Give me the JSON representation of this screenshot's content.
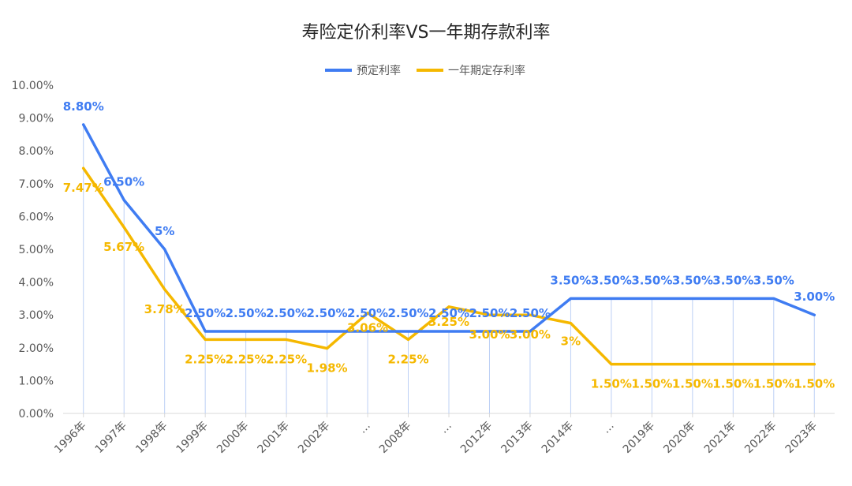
{
  "chart_data": {
    "type": "line",
    "title": "寿险定价利率VS一年期存款利率",
    "categories": [
      "1996年",
      "1997年",
      "1998年",
      "1999年",
      "2000年",
      "2001年",
      "2002年",
      "…",
      "2008年",
      "…",
      "2012年",
      "2013年",
      "2014年",
      "…",
      "2019年",
      "2020年",
      "2021年",
      "2022年",
      "2023年"
    ],
    "ylim": [
      0,
      10
    ],
    "yticks": [
      "0.00%",
      "1.00%",
      "2.00%",
      "3.00%",
      "4.00%",
      "5.00%",
      "6.00%",
      "7.00%",
      "8.00%",
      "9.00%",
      "10.00%"
    ],
    "grid": false,
    "legend_position": "top",
    "series": [
      {
        "name": "预定利率",
        "color": "#3f7cf2",
        "values": [
          8.8,
          6.5,
          5.0,
          2.5,
          2.5,
          2.5,
          2.5,
          2.5,
          2.5,
          2.5,
          2.5,
          2.5,
          3.5,
          3.5,
          3.5,
          3.5,
          3.5,
          3.5,
          3.0
        ],
        "labels": [
          "8.80%",
          "6.50%",
          "5%",
          "2.50%",
          "2.50%",
          "2.50%",
          "2.50%",
          "2.50%",
          "2.50%",
          "2.50%",
          "2.50%",
          "2.50%",
          "3.50%",
          "3.50%",
          "3.50%",
          "3.50%",
          "3.50%",
          "3.50%",
          "3.00%"
        ]
      },
      {
        "name": "一年期定存利率",
        "color": "#f5b800",
        "values": [
          7.47,
          5.67,
          3.78,
          2.25,
          2.25,
          2.25,
          1.98,
          3.06,
          2.25,
          3.25,
          3.0,
          3.0,
          2.75,
          1.5,
          1.5,
          1.5,
          1.5,
          1.5,
          1.5
        ],
        "labels": [
          "7.47%",
          "5.67%",
          "3.78%",
          "2.25%",
          "2.25%",
          "2.25%",
          "1.98%",
          "3.06%",
          "2.25%",
          "3.25%",
          "3.00%",
          "3.00%",
          "3%",
          "1.50%",
          "1.50%",
          "1.50%",
          "1.50%",
          "1.50%",
          "1.50%"
        ]
      }
    ]
  }
}
